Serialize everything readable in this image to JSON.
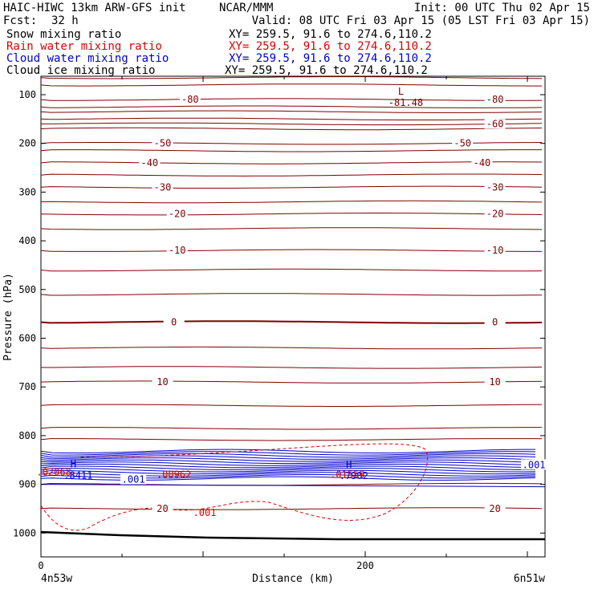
{
  "header": {
    "title_left": "HAIC-HIWC 13km ARW-GFS init",
    "org": "NCAR/MMM",
    "init": "Init: 00 UTC Thu 02 Apr 15",
    "fcst_label": "Fcst:",
    "fcst_value": "32 h",
    "valid": "Valid: 08 UTC Fri 03 Apr 15 (05 LST Fri 03 Apr 15)"
  },
  "fields": [
    {
      "name": "Snow mixing ratio",
      "xy": "XY= 259.5, 91.6 to 274.6,110.2",
      "color": "#000000"
    },
    {
      "name": "Rain water mixing ratio",
      "xy": "XY= 259.5, 91.6 to 274.6,110.2",
      "color": "#e00000"
    },
    {
      "name": "Cloud water mixing ratio",
      "xy": "XY= 259.5, 91.6 to 274.6,110.2",
      "color": "#0000cc"
    },
    {
      "name": "Cloud ice mixing ratio",
      "xy": "XY= 259.5, 91.6 to 274.6,110.2",
      "color": "#000000"
    }
  ],
  "colors": {
    "temperature": "#800000",
    "rain": "#e00000",
    "cloud_water": "#0000cc",
    "terrain": "#000000"
  },
  "chart_data": {
    "type": "line",
    "xlabel": "Distance (km)",
    "ylabel": "Pressure (hPa)",
    "xlim": [
      0,
      311
    ],
    "ylim": [
      1050,
      50
    ],
    "x_ticks": [
      0,
      200
    ],
    "y_ticks": [
      100,
      200,
      300,
      400,
      500,
      600,
      700,
      800,
      900,
      1000
    ],
    "endpoints": {
      "left": "4n53w",
      "right": "6n51w"
    },
    "temperature_contours": [
      {
        "value": -80,
        "pressure": 110,
        "labels": [
          {
            "x": 92,
            "text": "-80"
          },
          {
            "x": 280,
            "text": "-80"
          }
        ]
      },
      {
        "value": -70,
        "pressure": 135,
        "labels": []
      },
      {
        "value": -60,
        "pressure": 160,
        "labels": [
          {
            "x": 280,
            "text": "-60"
          }
        ]
      },
      {
        "value": -50,
        "pressure": 200,
        "labels": [
          {
            "x": 75,
            "text": "-50"
          },
          {
            "x": 260,
            "text": "-50"
          }
        ]
      },
      {
        "value": -40,
        "pressure": 240,
        "labels": [
          {
            "x": 67,
            "text": "-40"
          },
          {
            "x": 272,
            "text": "-40"
          }
        ]
      },
      {
        "value": -30,
        "pressure": 290,
        "labels": [
          {
            "x": 75,
            "text": "-30"
          },
          {
            "x": 280,
            "text": "-30"
          }
        ]
      },
      {
        "value": -20,
        "pressure": 345,
        "labels": [
          {
            "x": 84,
            "text": "-20"
          },
          {
            "x": 280,
            "text": "-20"
          }
        ]
      },
      {
        "value": -10,
        "pressure": 420,
        "labels": [
          {
            "x": 84,
            "text": "-10"
          },
          {
            "x": 280,
            "text": "-10"
          }
        ]
      },
      {
        "value": 0,
        "pressure": 567,
        "labels": [
          {
            "x": 82,
            "text": "0"
          },
          {
            "x": 280,
            "text": "0"
          }
        ]
      },
      {
        "value": 10,
        "pressure": 690,
        "labels": [
          {
            "x": 75,
            "text": "10"
          },
          {
            "x": 280,
            "text": "10"
          }
        ]
      },
      {
        "value": 20,
        "pressure": 950,
        "labels": [
          {
            "x": 75,
            "text": "20"
          },
          {
            "x": 280,
            "text": "20"
          }
        ]
      }
    ],
    "extra_temperature_lines": [
      65,
      80,
      125,
      150,
      170,
      215,
      265,
      320,
      375,
      460,
      510,
      620,
      660,
      738,
      785,
      808,
      900
    ],
    "extrema": [
      {
        "kind": "L",
        "x": 222,
        "pressure": 100,
        "value": "-81.48"
      },
      {
        "kind": "H",
        "x": 20,
        "pressure": 865,
        "value": ".8411"
      },
      {
        "kind": "H",
        "x": 190,
        "pressure": 866,
        "value": ".7902"
      }
    ],
    "cloud_water_labels": [
      {
        "x": 57,
        "pressure": 890,
        "text": ".001"
      },
      {
        "x": 304,
        "pressure": 860,
        "text": ".001"
      }
    ],
    "rain_labels": [
      {
        "x": 8,
        "pressure": 875,
        "text": ".02068"
      },
      {
        "x": 82,
        "pressure": 880,
        "text": ".00962"
      },
      {
        "x": 189,
        "pressure": 880,
        "text": ".01559"
      },
      {
        "x": 101,
        "pressure": 958,
        "text": ".001"
      }
    ],
    "grid": false
  }
}
